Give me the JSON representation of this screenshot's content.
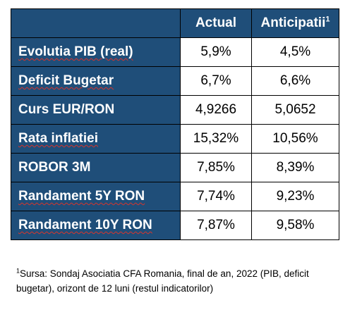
{
  "table": {
    "headers": {
      "label": "",
      "actual": "Actual",
      "forecast": "Anticipatii",
      "forecast_note": "1"
    },
    "rows": [
      {
        "label": "Evolutia PIB (real)",
        "actual": "5,9%",
        "forecast": "4,5%"
      },
      {
        "label": "Deficit Bugetar",
        "actual": "6,7%",
        "forecast": "6,6%"
      },
      {
        "label": "Curs EUR/RON",
        "actual": "4,9266",
        "forecast": "5,0652"
      },
      {
        "label": "Rata inflatiei",
        "actual": "15,32%",
        "forecast": "10,56%"
      },
      {
        "label": "ROBOR 3M",
        "actual": "7,85%",
        "forecast": "8,39%"
      },
      {
        "label": "Randament 5Y RON",
        "actual": "7,74%",
        "forecast": "9,23%"
      },
      {
        "label": "Randament 10Y RON",
        "actual": "7,87%",
        "forecast": "9,58%"
      }
    ]
  },
  "footnote": {
    "mark": "1",
    "text": "Sursa: Sondaj Asociatia CFA Romania, final de an, 2022 (PIB, deficit bugetar), orizont de 12 luni (restul indicatorilor)"
  },
  "colors": {
    "header_fill": "#1f4e79",
    "header_text": "#ffffff",
    "cell_fill": "#ffffff",
    "border": "#000000",
    "spellcheck_underline": "#d9342b"
  }
}
